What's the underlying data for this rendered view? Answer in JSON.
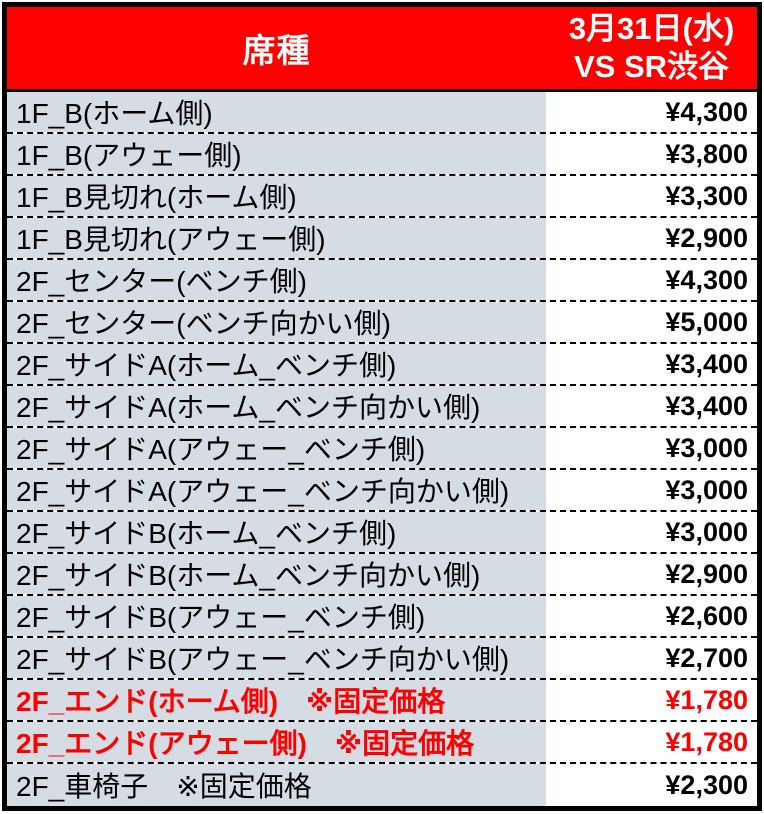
{
  "header": {
    "seat_type_label": "席種",
    "date_line1": "3月31日(水)",
    "date_line2": "VS SR渋谷"
  },
  "rows": [
    {
      "label": "1F_B(ホーム側)",
      "price": "¥4,300",
      "highlight": false
    },
    {
      "label": "1F_B(アウェー側)",
      "price": "¥3,800",
      "highlight": false
    },
    {
      "label": "1F_B見切れ(ホーム側)",
      "price": "¥3,300",
      "highlight": false
    },
    {
      "label": "1F_B見切れ(アウェー側)",
      "price": "¥2,900",
      "highlight": false
    },
    {
      "label": "2F_センター(ベンチ側)",
      "price": "¥4,300",
      "highlight": false
    },
    {
      "label": "2F_センター(ベンチ向かい側)",
      "price": "¥5,000",
      "highlight": false
    },
    {
      "label": "2F_サイドA(ホーム_ベンチ側)",
      "price": "¥3,400",
      "highlight": false
    },
    {
      "label": "2F_サイドA(ホーム_ベンチ向かい側)",
      "price": "¥3,400",
      "highlight": false
    },
    {
      "label": "2F_サイドA(アウェー_ベンチ側)",
      "price": "¥3,000",
      "highlight": false
    },
    {
      "label": "2F_サイドA(アウェー_ベンチ向かい側)",
      "price": "¥3,000",
      "highlight": false
    },
    {
      "label": "2F_サイドB(ホーム_ベンチ側)",
      "price": "¥3,000",
      "highlight": false
    },
    {
      "label": "2F_サイドB(ホーム_ベンチ向かい側)",
      "price": "¥2,900",
      "highlight": false
    },
    {
      "label": "2F_サイドB(アウェー_ベンチ側)",
      "price": "¥2,600",
      "highlight": false
    },
    {
      "label": "2F_サイドB(アウェー_ベンチ向かい側)",
      "price": "¥2,700",
      "highlight": false
    },
    {
      "label": "2F_エンド(ホーム側)　※固定価格",
      "price": "¥1,780",
      "highlight": true
    },
    {
      "label": "2F_エンド(アウェー側)　※固定価格",
      "price": "¥1,780",
      "highlight": true
    },
    {
      "label": "2F_車椅子　※固定価格",
      "price": "¥2,300",
      "highlight": false
    }
  ],
  "colors": {
    "header_bg": "#ff0000",
    "header_text": "#ffffff",
    "label_col_bg": "#d6dce4",
    "price_col_bg": "#ffffff",
    "text": "#000000",
    "highlight_text": "#ff0000",
    "border": "#000000"
  }
}
